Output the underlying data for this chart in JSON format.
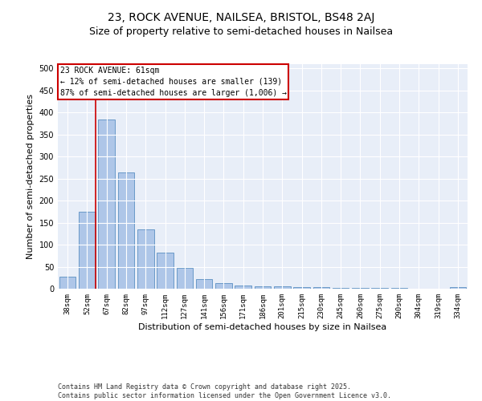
{
  "title1": "23, ROCK AVENUE, NAILSEA, BRISTOL, BS48 2AJ",
  "title2": "Size of property relative to semi-detached houses in Nailsea",
  "xlabel": "Distribution of semi-detached houses by size in Nailsea",
  "ylabel": "Number of semi-detached properties",
  "categories": [
    "38sqm",
    "52sqm",
    "67sqm",
    "82sqm",
    "97sqm",
    "112sqm",
    "127sqm",
    "141sqm",
    "156sqm",
    "171sqm",
    "186sqm",
    "201sqm",
    "215sqm",
    "230sqm",
    "245sqm",
    "260sqm",
    "275sqm",
    "290sqm",
    "304sqm",
    "319sqm",
    "334sqm"
  ],
  "values": [
    27,
    175,
    385,
    265,
    135,
    82,
    47,
    22,
    12,
    8,
    6,
    6,
    4,
    3,
    2,
    1,
    1,
    1,
    0,
    0,
    3
  ],
  "bar_color": "#aec6e8",
  "bar_edge_color": "#5a8fc2",
  "annotation_title": "23 ROCK AVENUE: 61sqm",
  "annotation_line1": "← 12% of semi-detached houses are smaller (139)",
  "annotation_line2": "87% of semi-detached houses are larger (1,006) →",
  "vline_color": "#cc0000",
  "annotation_box_color": "#cc0000",
  "ylim": [
    0,
    510
  ],
  "yticks": [
    0,
    50,
    100,
    150,
    200,
    250,
    300,
    350,
    400,
    450,
    500
  ],
  "background_color": "#e8eef8",
  "footer1": "Contains HM Land Registry data © Crown copyright and database right 2025.",
  "footer2": "Contains public sector information licensed under the Open Government Licence v3.0.",
  "title_fontsize": 10,
  "subtitle_fontsize": 9,
  "tick_fontsize": 6.5,
  "ylabel_fontsize": 8,
  "xlabel_fontsize": 8,
  "annotation_fontsize": 7,
  "footer_fontsize": 6
}
